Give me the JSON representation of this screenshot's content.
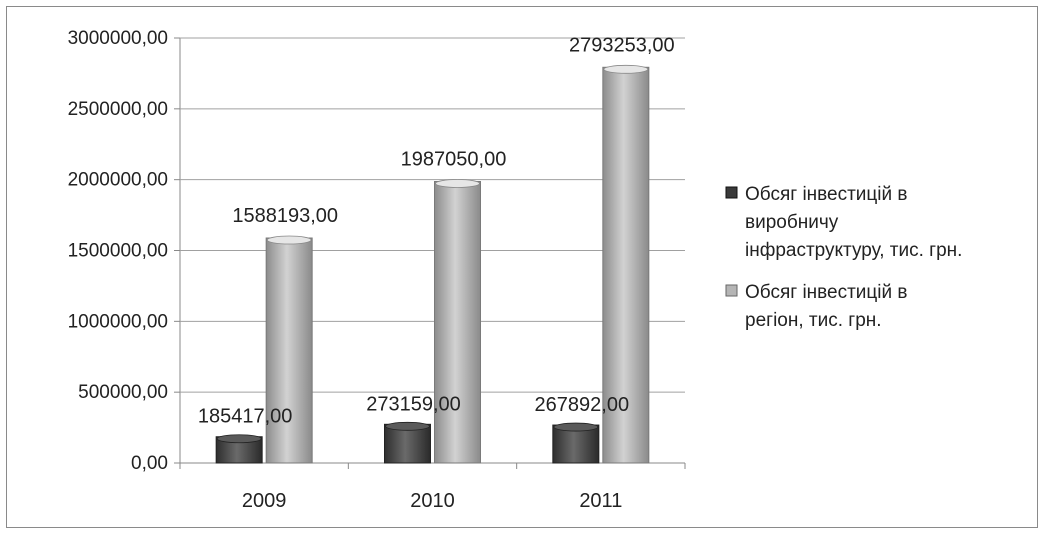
{
  "chart_data": {
    "type": "bar",
    "categories": [
      "2009",
      "2010",
      "2011"
    ],
    "series": [
      {
        "name": "Обсяг інвестицій в виробничу інфраструктуру, тис. грн.",
        "legend_lines": [
          "Обсяг інвестицій в",
          "виробничу",
          "інфраструктуру, тис. грн."
        ],
        "values": [
          185417.0,
          273159.0,
          267892.0
        ],
        "value_labels": [
          "185417,00",
          "273159,00",
          "267892,00"
        ],
        "color": "#4a4a4a"
      },
      {
        "name": "Обсяг інвестицій в регіон, тис. грн.",
        "legend_lines": [
          "Обсяг інвестицій в",
          "регіон, тис. грн."
        ],
        "values": [
          1588193.0,
          1987050.0,
          2793253.0
        ],
        "value_labels": [
          "1588193,00",
          "1987050,00",
          "2793253,00"
        ],
        "color": "#a8a8a8"
      }
    ],
    "ylim": [
      0,
      3000000
    ],
    "yticks": [
      0,
      500000,
      1000000,
      1500000,
      2000000,
      2500000,
      3000000
    ],
    "ytick_labels": [
      "0,00",
      "500000,00",
      "1000000,00",
      "1500000,00",
      "2000000,00",
      "2500000,00",
      "3000000,00"
    ],
    "grid": true,
    "legend_position": "right"
  }
}
